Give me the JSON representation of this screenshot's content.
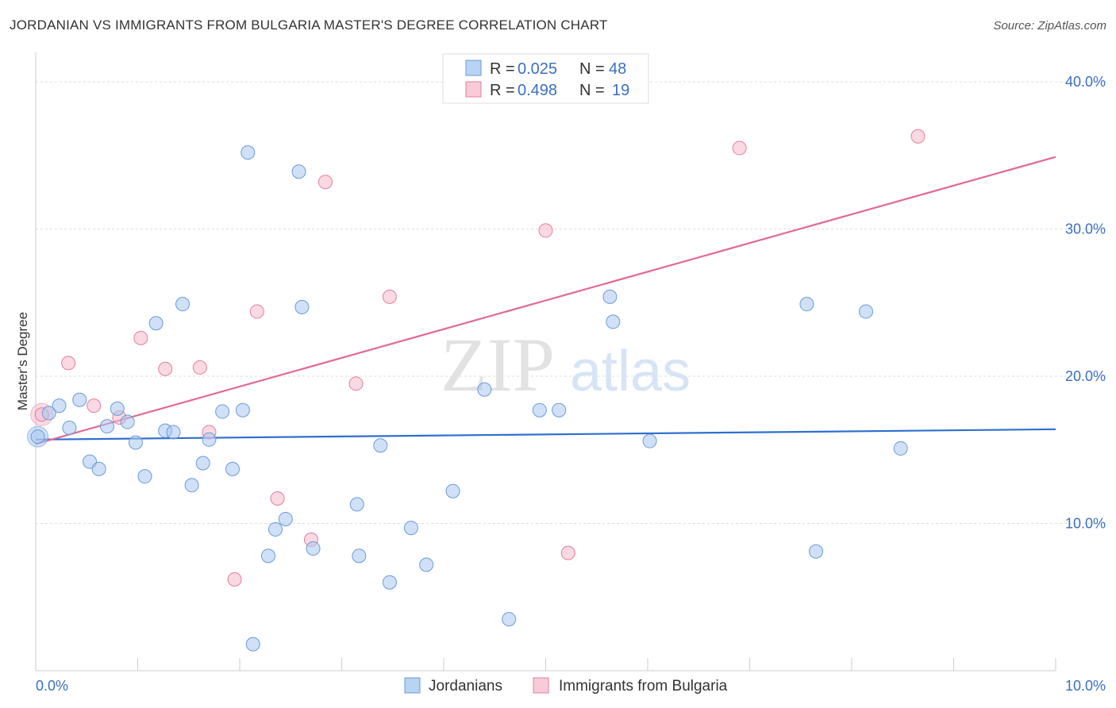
{
  "title": "JORDANIAN VS IMMIGRANTS FROM BULGARIA MASTER'S DEGREE CORRELATION CHART",
  "source": "Source: ZipAtlas.com",
  "watermark": {
    "zip": "ZIP",
    "atlas": "atlas"
  },
  "chart_data": {
    "type": "scatter",
    "ylabel": "Master's Degree",
    "xlim": [
      0,
      10
    ],
    "ylim": [
      0,
      42
    ],
    "x_ticks": [
      "0.0%",
      "10.0%"
    ],
    "y_ticks": [
      {
        "value": 10,
        "label": "10.0%"
      },
      {
        "value": 20,
        "label": "20.0%"
      },
      {
        "value": 30,
        "label": "30.0%"
      },
      {
        "value": 40,
        "label": "40.0%"
      }
    ],
    "grid": true,
    "legend_top": {
      "rows": [
        {
          "r_label": "R =",
          "r_value": "0.025",
          "n_label": "N =",
          "n_value": "48"
        },
        {
          "r_label": "R =",
          "r_value": "0.498",
          "n_label": "N =",
          "n_value": "19"
        }
      ]
    },
    "series": [
      {
        "name": "Jordanians",
        "color": "#a9c9f0",
        "stroke": "#6a9ad8",
        "trend_color": "#2e6fcf",
        "trend": [
          [
            0,
            15.7
          ],
          [
            10,
            16.4
          ]
        ],
        "points": [
          [
            0.02,
            15.9
          ],
          [
            0.13,
            17.5
          ],
          [
            0.23,
            18.0
          ],
          [
            0.33,
            16.5
          ],
          [
            0.43,
            18.4
          ],
          [
            0.53,
            14.2
          ],
          [
            0.62,
            13.7
          ],
          [
            0.7,
            16.6
          ],
          [
            0.8,
            17.8
          ],
          [
            0.9,
            16.9
          ],
          [
            0.98,
            15.5
          ],
          [
            1.07,
            13.2
          ],
          [
            1.18,
            23.6
          ],
          [
            1.27,
            16.3
          ],
          [
            1.35,
            16.2
          ],
          [
            1.44,
            24.9
          ],
          [
            1.53,
            12.6
          ],
          [
            1.64,
            14.1
          ],
          [
            1.7,
            15.7
          ],
          [
            1.83,
            17.6
          ],
          [
            1.93,
            13.7
          ],
          [
            2.03,
            17.7
          ],
          [
            2.08,
            35.2
          ],
          [
            2.13,
            1.8
          ],
          [
            2.28,
            7.8
          ],
          [
            2.35,
            9.6
          ],
          [
            2.45,
            10.3
          ],
          [
            2.58,
            33.9
          ],
          [
            2.61,
            24.7
          ],
          [
            2.72,
            8.3
          ],
          [
            3.15,
            11.3
          ],
          [
            3.17,
            7.8
          ],
          [
            3.38,
            15.3
          ],
          [
            3.47,
            6.0
          ],
          [
            3.68,
            9.7
          ],
          [
            3.83,
            7.2
          ],
          [
            4.09,
            12.2
          ],
          [
            4.4,
            19.1
          ],
          [
            4.64,
            3.5
          ],
          [
            4.94,
            17.7
          ],
          [
            5.13,
            17.7
          ],
          [
            5.63,
            25.4
          ],
          [
            5.66,
            23.7
          ],
          [
            6.02,
            15.6
          ],
          [
            7.56,
            24.9
          ],
          [
            7.65,
            8.1
          ],
          [
            8.14,
            24.4
          ],
          [
            8.48,
            15.1
          ]
        ]
      },
      {
        "name": "Immigrants from Bulgaria",
        "color": "#f6b9cb",
        "stroke": "#e47e9f",
        "trend_color": "#e26a92",
        "trend": [
          [
            0,
            15.4
          ],
          [
            10,
            34.9
          ]
        ],
        "points": [
          [
            0.06,
            17.4
          ],
          [
            0.32,
            20.9
          ],
          [
            0.57,
            18.0
          ],
          [
            0.82,
            17.2
          ],
          [
            1.03,
            22.6
          ],
          [
            1.27,
            20.5
          ],
          [
            1.61,
            20.6
          ],
          [
            1.7,
            16.2
          ],
          [
            1.95,
            6.2
          ],
          [
            2.17,
            24.4
          ],
          [
            2.37,
            11.7
          ],
          [
            2.7,
            8.9
          ],
          [
            2.84,
            33.2
          ],
          [
            3.14,
            19.5
          ],
          [
            3.47,
            25.4
          ],
          [
            5.0,
            29.9
          ],
          [
            5.22,
            8.0
          ],
          [
            6.9,
            35.5
          ],
          [
            8.65,
            36.3
          ]
        ]
      }
    ]
  }
}
